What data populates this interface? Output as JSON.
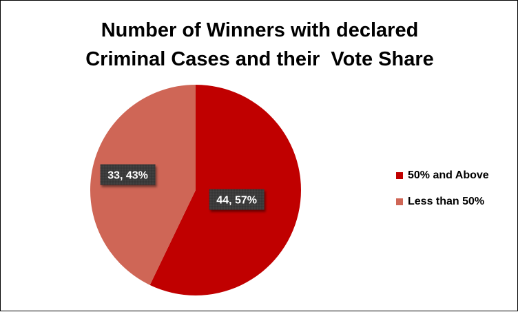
{
  "chart_data": {
    "type": "pie",
    "title_lines": [
      "Number of Winners with declared",
      "Criminal Cases and their  Vote Share"
    ],
    "slices": [
      {
        "label": "50% and Above",
        "value": 44,
        "percent": "57%",
        "data_label": "44, 57%",
        "color": "#C00000"
      },
      {
        "label": "Less than 50%",
        "value": 33,
        "percent": "43%",
        "data_label": "33, 43%",
        "color": "#CF6656"
      }
    ],
    "start_angle_deg": 0,
    "direction": "clockwise",
    "legend_position": "right"
  }
}
